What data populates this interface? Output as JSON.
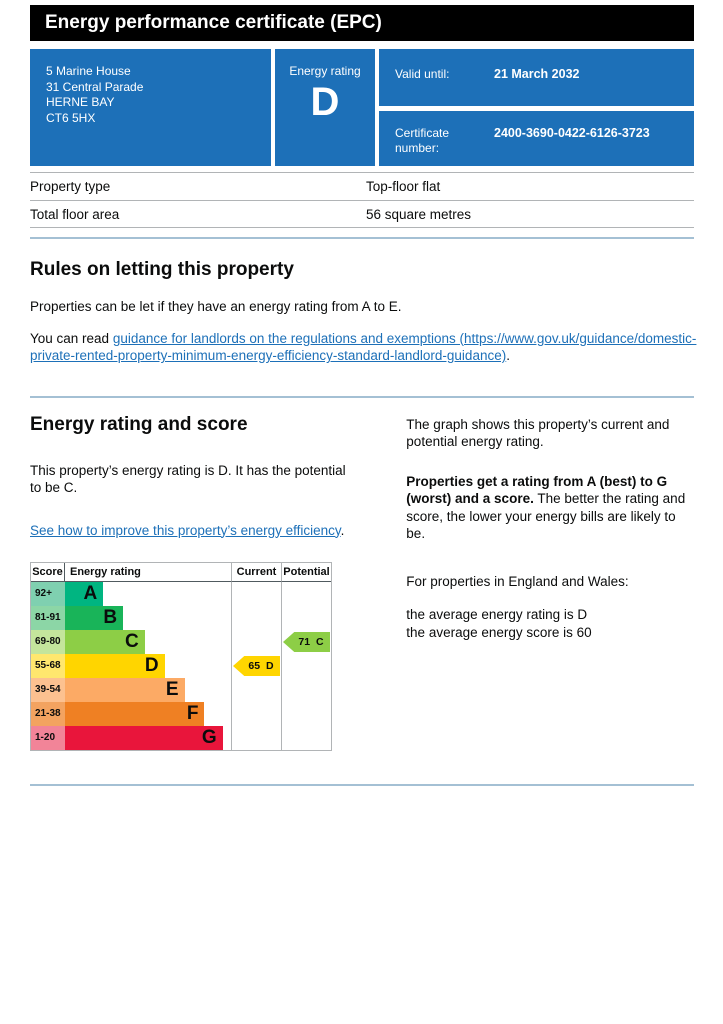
{
  "page_title": "Energy performance certificate (EPC)",
  "colors": {
    "brand-blue": "#1d70b8",
    "link-blue": "#1d70b8",
    "text": "#0b0c0c",
    "border-grey": "#b1b4b6",
    "rule-blue": "#a4c0d4"
  },
  "summary": {
    "address_lines": [
      "5 Marine House",
      "31 Central Parade",
      "HERNE BAY",
      "CT6 5HX"
    ],
    "energy_rating_label": "Energy rating",
    "energy_rating": "D",
    "valid_until_label": "Valid until:",
    "valid_until": "21 March 2032",
    "certificate_number_label": "Certificate number:",
    "certificate_number": "2400-3690-0422-6126-3723"
  },
  "property_table": {
    "rows": [
      {
        "label": "Property type",
        "value": "Top-floor flat"
      },
      {
        "label": "Total floor area",
        "value": "56 square metres"
      }
    ]
  },
  "rules_section": {
    "heading": "Rules on letting this property",
    "p1": "Properties can be let if they have an energy rating from A to E.",
    "read_prefix": "You can read ",
    "link_text": "guidance for landlords on the regulations and exemptions (https://www.gov.uk/guidance/domestic-private-rented-property-minimum-energy-efficiency-standard-landlord-guidance)",
    "suffix": "."
  },
  "rating_section": {
    "heading": "Energy rating and score",
    "p1": "This property’s energy rating is D. It has the potential to be C.",
    "improve_link": "See how to improve this property’s energy efficiency",
    "improve_suffix": ".",
    "right": {
      "p1": "The graph shows this property’s current and potential energy rating.",
      "p2_bold": "Properties get a rating from A (best) to G (worst) and a score.",
      "p2_rest": " The better the rating and score, the lower your energy bills are likely to be.",
      "p3": "For properties in England and Wales:",
      "p4_line1": "the average energy rating is D",
      "p4_line2": "the average energy score is 60"
    }
  },
  "chart_data": {
    "type": "bar",
    "title": "Energy rating and score chart",
    "headers": [
      "Score",
      "Energy rating",
      "Current",
      "Potential"
    ],
    "bands": [
      {
        "score": "92+",
        "letter": "A",
        "color": "#00b581",
        "tint": "#7fd0b0",
        "width_pct": 23
      },
      {
        "score": "81-91",
        "letter": "B",
        "color": "#19b459",
        "tint": "#8cd6a6",
        "width_pct": 35
      },
      {
        "score": "69-80",
        "letter": "C",
        "color": "#8dce46",
        "tint": "#c4e59c",
        "width_pct": 48
      },
      {
        "score": "55-68",
        "letter": "D",
        "color": "#ffd500",
        "tint": "#ffe76e",
        "width_pct": 60
      },
      {
        "score": "39-54",
        "letter": "E",
        "color": "#fcaa65",
        "tint": "#fcc190",
        "width_pct": 72
      },
      {
        "score": "21-38",
        "letter": "F",
        "color": "#ef8023",
        "tint": "#f3a360",
        "width_pct": 84
      },
      {
        "score": "1-20",
        "letter": "G",
        "color": "#e9153b",
        "tint": "#f28498",
        "width_pct": 95
      }
    ],
    "current": {
      "score": 65,
      "letter": "D",
      "color": "#ffd500",
      "band_index": 3
    },
    "potential": {
      "score": 71,
      "letter": "C",
      "color": "#8dce46",
      "band_index": 2
    }
  }
}
